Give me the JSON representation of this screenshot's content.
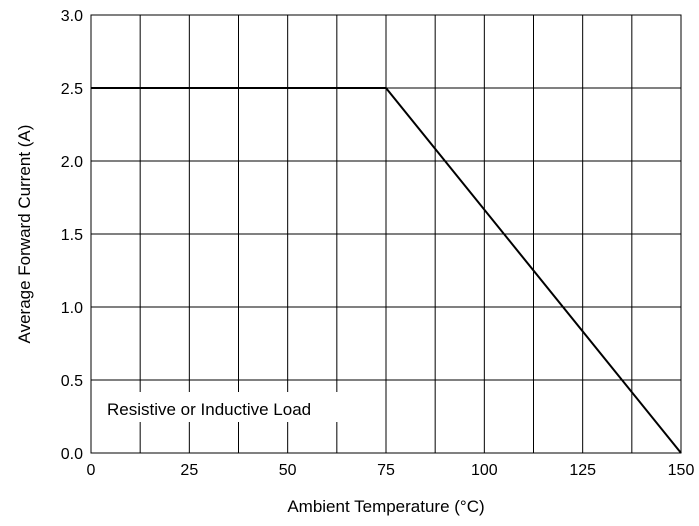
{
  "chart_data": {
    "type": "line",
    "title": "",
    "xlabel": "Ambient Temperature (°C)",
    "ylabel": "Average Forward Current (A)",
    "xlim": [
      0,
      150
    ],
    "ylim": [
      0.0,
      3.0
    ],
    "x_ticks": [
      0,
      25,
      50,
      75,
      100,
      125,
      150
    ],
    "x_tick_labels": [
      "0",
      "25",
      "50",
      "75",
      "100",
      "125",
      "150"
    ],
    "y_ticks": [
      0.0,
      0.5,
      1.0,
      1.5,
      2.0,
      2.5,
      3.0
    ],
    "y_tick_labels": [
      "0.0",
      "0.5",
      "1.0",
      "1.5",
      "2.0",
      "2.5",
      "3.0"
    ],
    "grid": true,
    "x_grid_step": 12.5,
    "y_grid_step": 0.5,
    "legend": "none",
    "series": [
      {
        "x": [
          0,
          75,
          150
        ],
        "y": [
          2.5,
          2.5,
          0.0
        ],
        "color": "#000000"
      }
    ],
    "annotation": "Resistive or Inductive Load"
  }
}
